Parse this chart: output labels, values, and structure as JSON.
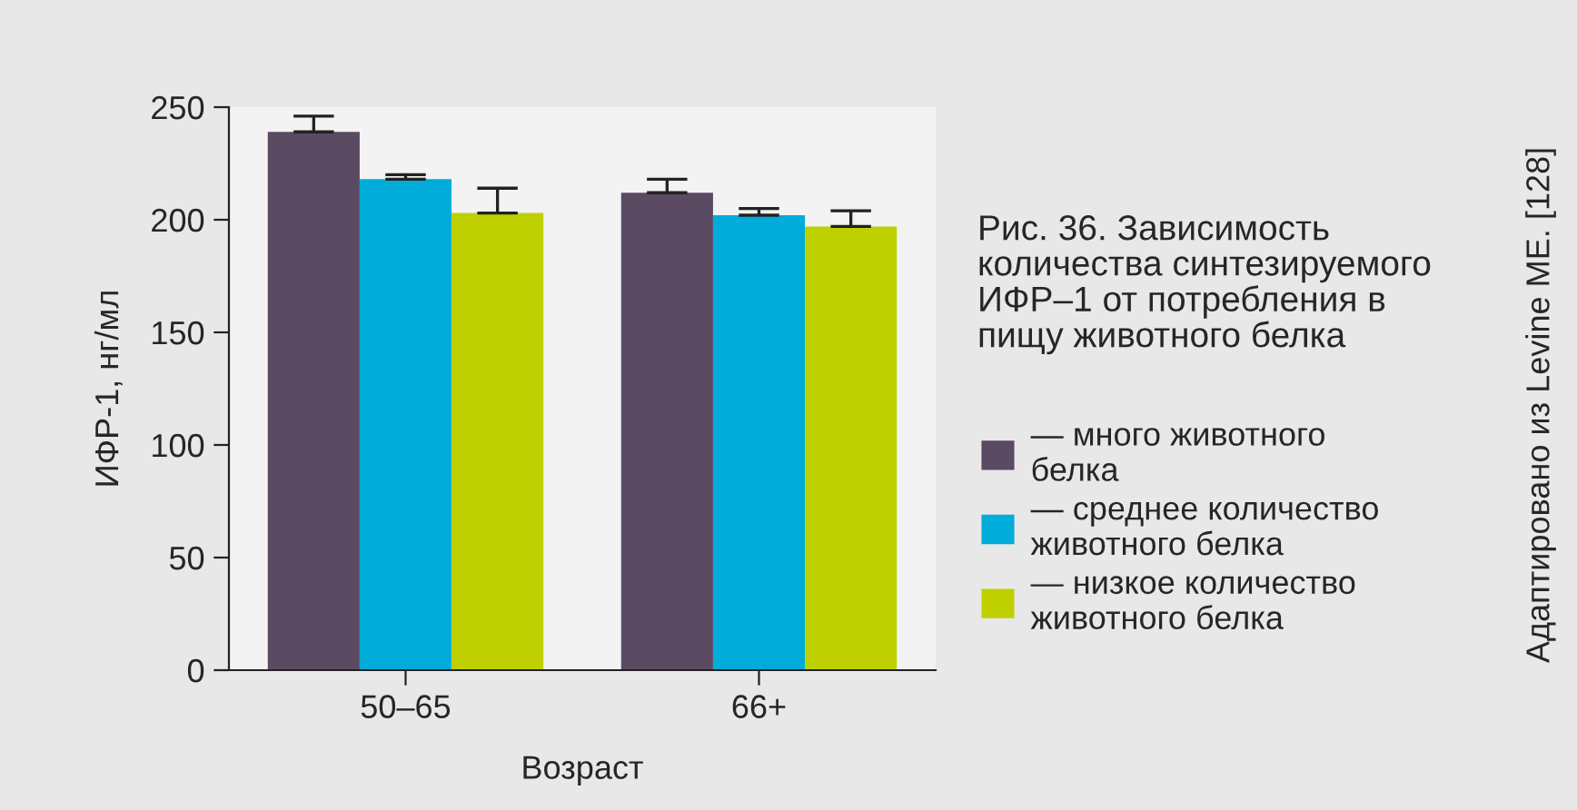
{
  "chart_data": {
    "type": "bar",
    "title": "Рис. 36. Зависимость количества синтезируемого ИФР–1 от потребления в пищу животного белка",
    "xlabel": "Возраст",
    "ylabel": "ИФР-1, нг/мл",
    "categories": [
      "50–65",
      "66+"
    ],
    "series": [
      {
        "name": "— много животного белка",
        "color": "#5a4a62",
        "values": [
          239,
          212
        ],
        "errors": [
          [
            239,
            246
          ],
          [
            212,
            218
          ]
        ]
      },
      {
        "name": "— среднее количество животного белка",
        "color": "#00acd9",
        "values": [
          218,
          202
        ],
        "errors": [
          [
            218,
            220
          ],
          [
            202,
            205
          ]
        ]
      },
      {
        "name": "— низкое количество животного белка",
        "color": "#bfd000",
        "values": [
          203,
          197
        ],
        "errors": [
          [
            203,
            214
          ],
          [
            197,
            204
          ]
        ]
      }
    ],
    "ylim": [
      0,
      250
    ],
    "yticks": [
      0,
      50,
      100,
      150,
      200,
      250
    ],
    "grid": false,
    "legend": "right",
    "annotations": [
      "Адаптировано из Levine ME. [128]"
    ]
  }
}
